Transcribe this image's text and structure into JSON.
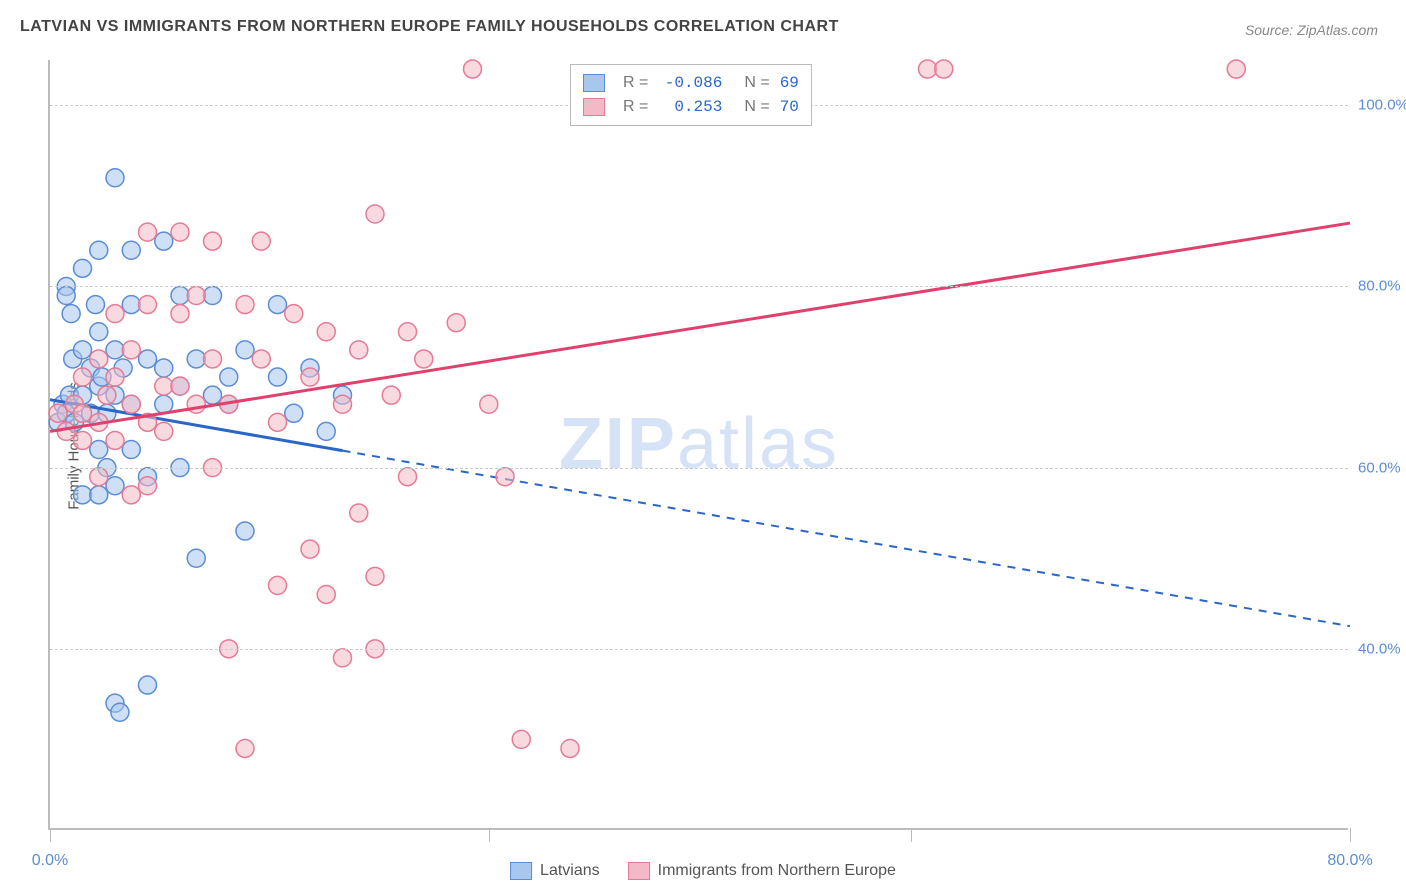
{
  "title": "LATVIAN VS IMMIGRANTS FROM NORTHERN EUROPE FAMILY HOUSEHOLDS CORRELATION CHART",
  "source_label": "Source: ZipAtlas.com",
  "y_axis_label": "Family Households",
  "watermark_a": "ZIP",
  "watermark_b": "atlas",
  "x_range": [
    0,
    80
  ],
  "y_range": [
    20,
    105
  ],
  "y_ticks": [
    40,
    60,
    80,
    100
  ],
  "y_tick_labels": [
    "40.0%",
    "60.0%",
    "80.0%",
    "100.0%"
  ],
  "x_ticks": [
    0,
    27,
    53,
    80
  ],
  "x_tick_labels": [
    "0.0%",
    "",
    "",
    "80.0%"
  ],
  "series": [
    {
      "name": "Latvians",
      "color_fill": "#a8c7ee",
      "color_stroke": "#5b8dd6",
      "line_color": "#2a66c8",
      "R": "-0.086",
      "N": "69",
      "marker_radius": 9,
      "regression": {
        "x1": 0,
        "y1": 67.5,
        "x2": 80,
        "y2": 42.5,
        "solid_until_x": 18
      },
      "points": [
        [
          0.5,
          65
        ],
        [
          0.8,
          67
        ],
        [
          1,
          66
        ],
        [
          1,
          80
        ],
        [
          1,
          79
        ],
        [
          1.2,
          68
        ],
        [
          1.3,
          77
        ],
        [
          1.4,
          72
        ],
        [
          1.5,
          65
        ],
        [
          2,
          82
        ],
        [
          2,
          73
        ],
        [
          2,
          68
        ],
        [
          2,
          57
        ],
        [
          2.5,
          71
        ],
        [
          2.5,
          66
        ],
        [
          2.8,
          78
        ],
        [
          3,
          84
        ],
        [
          3,
          75
        ],
        [
          3,
          69
        ],
        [
          3,
          62
        ],
        [
          3,
          57
        ],
        [
          3.2,
          70
        ],
        [
          3.5,
          66
        ],
        [
          3.5,
          60
        ],
        [
          4,
          92
        ],
        [
          4,
          73
        ],
        [
          4,
          68
        ],
        [
          4,
          58
        ],
        [
          4,
          34
        ],
        [
          4.3,
          33
        ],
        [
          4.5,
          71
        ],
        [
          5,
          84
        ],
        [
          5,
          78
        ],
        [
          5,
          67
        ],
        [
          5,
          62
        ],
        [
          6,
          72
        ],
        [
          6,
          59
        ],
        [
          6,
          36
        ],
        [
          7,
          85
        ],
        [
          7,
          71
        ],
        [
          7,
          67
        ],
        [
          8,
          79
        ],
        [
          8,
          69
        ],
        [
          8,
          60
        ],
        [
          9,
          72
        ],
        [
          9,
          50
        ],
        [
          10,
          79
        ],
        [
          10,
          68
        ],
        [
          11,
          70
        ],
        [
          11,
          67
        ],
        [
          12,
          73
        ],
        [
          12,
          53
        ],
        [
          14,
          78
        ],
        [
          14,
          70
        ],
        [
          15,
          66
        ],
        [
          16,
          71
        ],
        [
          17,
          64
        ],
        [
          18,
          68
        ]
      ]
    },
    {
      "name": "Immigrants from Northern Europe",
      "color_fill": "#f3b9c6",
      "color_stroke": "#e67b96",
      "line_color": "#e0416c",
      "R": "0.253",
      "N": "70",
      "marker_radius": 9,
      "regression": {
        "x1": 0,
        "y1": 64,
        "x2": 80,
        "y2": 87,
        "solid_until_x": 80
      },
      "points": [
        [
          0.5,
          66
        ],
        [
          1,
          64
        ],
        [
          1.5,
          67
        ],
        [
          2,
          66
        ],
        [
          2,
          63
        ],
        [
          2,
          70
        ],
        [
          3,
          65
        ],
        [
          3,
          72
        ],
        [
          3,
          59
        ],
        [
          3.5,
          68
        ],
        [
          4,
          70
        ],
        [
          4,
          63
        ],
        [
          4,
          77
        ],
        [
          5,
          67
        ],
        [
          5,
          73
        ],
        [
          5,
          57
        ],
        [
          6,
          86
        ],
        [
          6,
          78
        ],
        [
          6,
          65
        ],
        [
          6,
          58
        ],
        [
          7,
          69
        ],
        [
          7,
          64
        ],
        [
          8,
          86
        ],
        [
          8,
          77
        ],
        [
          8,
          69
        ],
        [
          9,
          79
        ],
        [
          9,
          67
        ],
        [
          10,
          85
        ],
        [
          10,
          72
        ],
        [
          10,
          60
        ],
        [
          11,
          67
        ],
        [
          11,
          40
        ],
        [
          12,
          78
        ],
        [
          12,
          29
        ],
        [
          13,
          85
        ],
        [
          13,
          72
        ],
        [
          14,
          65
        ],
        [
          14,
          47
        ],
        [
          15,
          77
        ],
        [
          16,
          70
        ],
        [
          16,
          51
        ],
        [
          17,
          75
        ],
        [
          17,
          46
        ],
        [
          18,
          67
        ],
        [
          18,
          39
        ],
        [
          19,
          73
        ],
        [
          19,
          55
        ],
        [
          20,
          88
        ],
        [
          20,
          48
        ],
        [
          20,
          40
        ],
        [
          21,
          68
        ],
        [
          22,
          75
        ],
        [
          22,
          59
        ],
        [
          23,
          72
        ],
        [
          25,
          76
        ],
        [
          26,
          104
        ],
        [
          27,
          67
        ],
        [
          28,
          59
        ],
        [
          29,
          30
        ],
        [
          32,
          29
        ],
        [
          54,
          104
        ],
        [
          55,
          104
        ],
        [
          73,
          104
        ]
      ]
    }
  ],
  "legend_labels": {
    "R": "R =",
    "N": "N ="
  },
  "bottom_legend": [
    {
      "label": "Latvians",
      "fill": "#a8c7ee",
      "stroke": "#5b8dd6"
    },
    {
      "label": "Immigrants from Northern Europe",
      "fill": "#f3b9c6",
      "stroke": "#e67b96"
    }
  ]
}
